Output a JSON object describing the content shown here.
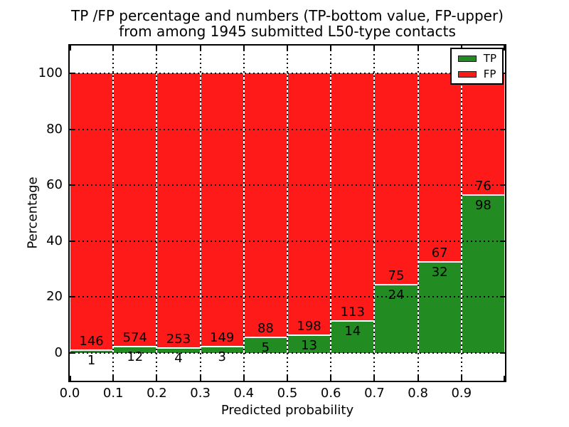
{
  "title": {
    "line1": "TP /FP percentage and numbers (TP-bottom value, FP-upper)",
    "line2": "from among 1945 submitted L50-type contacts"
  },
  "chart_data": {
    "type": "bar",
    "stacked": true,
    "normalized": "each bin scaled to 100%",
    "title": "TP /FP percentage and numbers (TP-bottom value, FP-upper) from among 1945 submitted L50-type contacts",
    "xlabel": "Predicted probability",
    "ylabel": "Percentage",
    "total_contacts": 1945,
    "bin_starts": [
      0.0,
      0.1,
      0.2,
      0.3,
      0.4,
      0.5,
      0.6,
      0.7,
      0.8,
      0.9
    ],
    "bin_width": 0.1,
    "series": [
      {
        "name": "TP",
        "color": "#228b22",
        "counts": [
          1,
          12,
          4,
          3,
          5,
          13,
          14,
          24,
          32,
          98
        ]
      },
      {
        "name": "FP",
        "color": "#ff1a1a",
        "counts": [
          146,
          574,
          253,
          149,
          88,
          198,
          113,
          75,
          67,
          76
        ]
      }
    ],
    "tp_percent_of_bin": [
      0.68,
      2.05,
      1.56,
      1.97,
      5.38,
      6.16,
      11.02,
      24.24,
      32.32,
      56.32
    ],
    "xlim": [
      0.0,
      1.0
    ],
    "ylim": [
      -10,
      110
    ],
    "xticks": [
      "0.0",
      "0.1",
      "0.2",
      "0.3",
      "0.4",
      "0.5",
      "0.6",
      "0.7",
      "0.8",
      "0.9"
    ],
    "yticks": [
      0,
      20,
      40,
      60,
      80,
      100
    ],
    "grid": "dotted black, horizontal at yticks and vertical at bin edges",
    "bar_edge_color": "#ffffff",
    "legend": {
      "position": "upper right",
      "entries": [
        {
          "label": "TP",
          "color": "#228b22"
        },
        {
          "label": "FP",
          "color": "#ff1a1a"
        }
      ]
    }
  }
}
